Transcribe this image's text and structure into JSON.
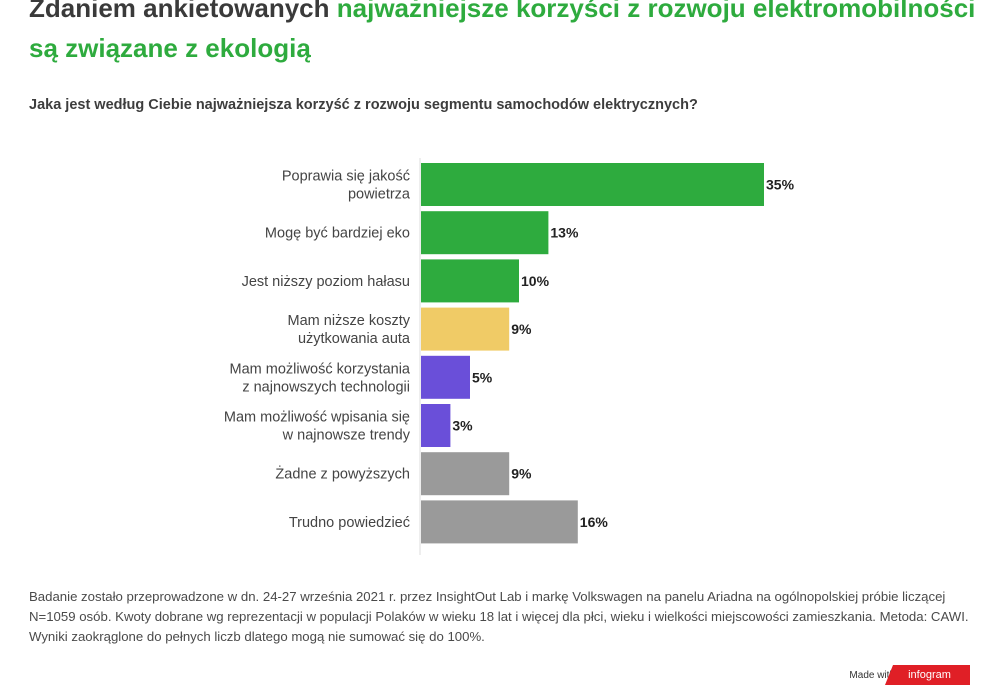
{
  "header": {
    "title_dark": "Zdaniem ankietowanych",
    "title_accent": "najważniejsze korzyści z rozwoju elektromobilności są związane z ekologią",
    "question": "Jaka jest według Ciebie najważniejsza korzyść z rozwoju segmentu samochodów elektrycznych?"
  },
  "colors": {
    "accent": "#2eab3e",
    "green": "#2eab3e",
    "yellow": "#f0cb66",
    "purple": "#6a4fd9",
    "gray": "#9a9a9a"
  },
  "chart_data": {
    "type": "bar",
    "orientation": "horizontal",
    "categories": [
      [
        "Poprawia się jakość",
        "powietrza"
      ],
      [
        "Mogę być bardziej eko"
      ],
      [
        "Jest niższy poziom hałasu"
      ],
      [
        "Mam niższe koszty",
        "użytkowania auta"
      ],
      [
        "Mam możliwość korzystania",
        "z najnowszych technologii"
      ],
      [
        "Mam możliwość wpisania się",
        "w najnowsze trendy"
      ],
      [
        "Żadne z powyższych"
      ],
      [
        "Trudno powiedzieć"
      ]
    ],
    "values": [
      35,
      13,
      10,
      9,
      5,
      3,
      9,
      16
    ],
    "value_labels": [
      "35%",
      "13%",
      "10%",
      "9%",
      "5%",
      "3%",
      "9%",
      "16%"
    ],
    "bar_colors": [
      "green",
      "green",
      "green",
      "yellow",
      "purple",
      "purple",
      "gray",
      "gray"
    ],
    "xlim": [
      0,
      35
    ],
    "grid": false,
    "legend": "none"
  },
  "footnote": "Badanie zostało przeprowadzone w dn. 24-27 września 2021 r. przez InsightOut Lab i markę Volkswagen na panelu Ariadna na ogólnopolskiej próbie liczącej N=1059 osób. Kwoty dobrane wg reprezentacji w populacji Polaków w wieku 18 lat i więcej dla płci, wieku i wielkości miejscowości zamieszkania. Metoda: CAWI. Wyniki zaokrąglone do pełnych liczb dlatego mogą nie sumować się do 100%.",
  "branding": {
    "made_with": "Made with",
    "logo_text": "infogram"
  }
}
